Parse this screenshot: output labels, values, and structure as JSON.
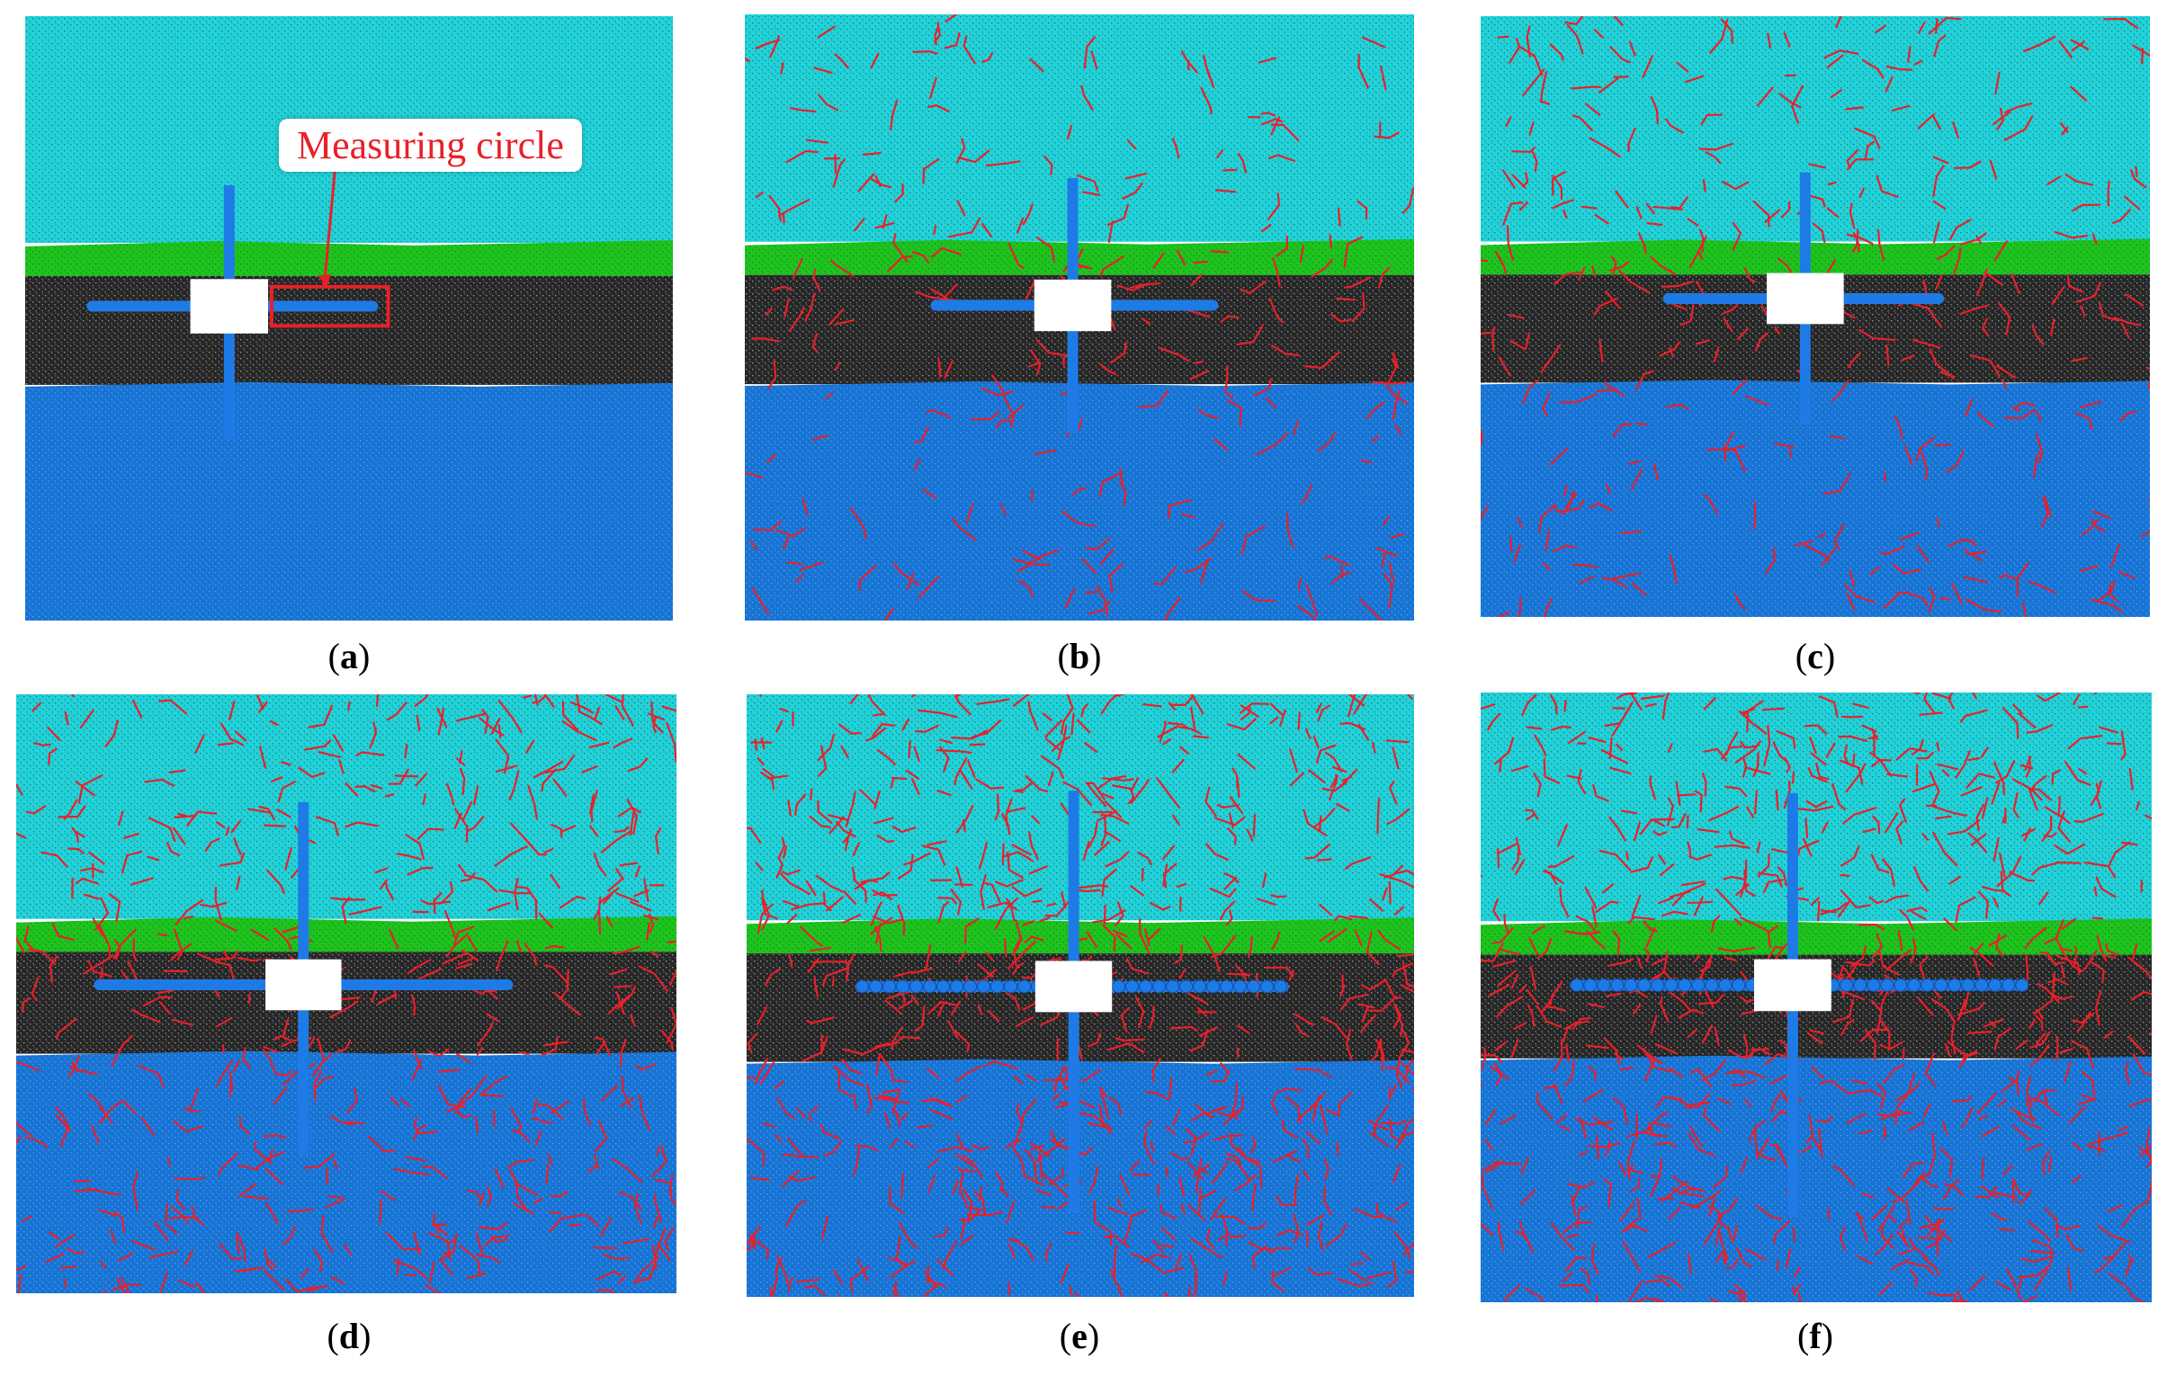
{
  "figure": {
    "callout_text": "Measuring circle",
    "colors": {
      "upper_layer": "#22d3d9",
      "middle_thin_layer": "#1fc41f",
      "dark_layer": "#262626",
      "lower_layer": "#1673d4",
      "crack": "#e8202a",
      "measure_line": "#1e7be6",
      "block": "#ffffff",
      "callout_box": "#e8202a"
    },
    "panels": [
      {
        "id": "a",
        "label": "a",
        "crack_count": 0,
        "dotted_arms": false,
        "show_callout": true
      },
      {
        "id": "b",
        "label": "b",
        "crack_count": 260,
        "dotted_arms": false,
        "show_callout": false
      },
      {
        "id": "c",
        "label": "c",
        "crack_count": 330,
        "dotted_arms": false,
        "show_callout": false
      },
      {
        "id": "d",
        "label": "d",
        "crack_count": 520,
        "dotted_arms": false,
        "show_callout": false
      },
      {
        "id": "e",
        "label": "e",
        "crack_count": 700,
        "dotted_arms": true,
        "show_callout": false
      },
      {
        "id": "f",
        "label": "f",
        "crack_count": 740,
        "dotted_arms": true,
        "show_callout": false
      }
    ]
  }
}
